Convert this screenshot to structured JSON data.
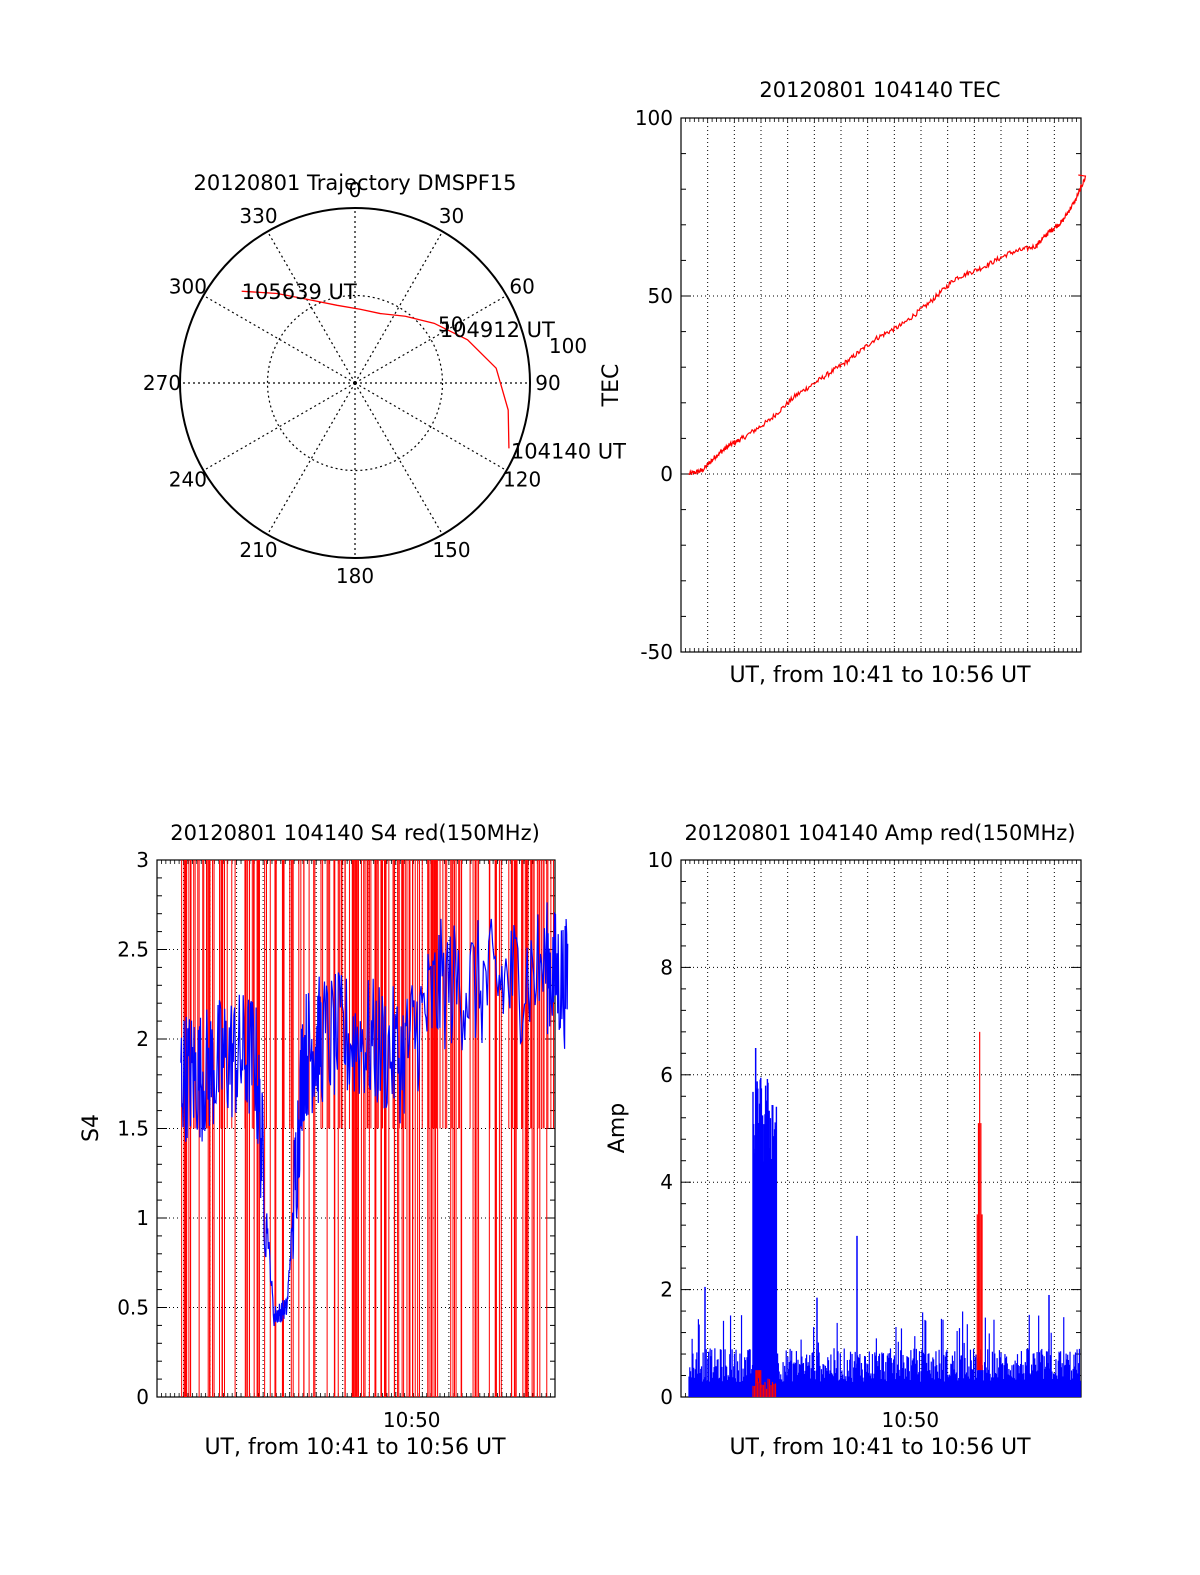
{
  "colors": {
    "background": "#ffffff",
    "axes": "#000000",
    "red_series": "#ff0000",
    "blue_series": "#0000ff"
  },
  "chart_data": [
    {
      "type": "polar",
      "title": "20120801 Trajectory DMSPF15",
      "angle_ticks": [
        "0",
        "30",
        "60",
        "90",
        "120",
        "150",
        "180",
        "210",
        "240",
        "270",
        "300",
        "330"
      ],
      "radial_ticks": [
        "50",
        "100"
      ],
      "radial_max": 100,
      "grid": true,
      "series": [
        {
          "color": "red",
          "points": [
            {
              "az": 309,
              "el": 15
            },
            {
              "az": 319,
              "el": 29
            },
            {
              "az": 331,
              "el": 41
            },
            {
              "az": 347,
              "el": 49
            },
            {
              "az": 4,
              "el": 52
            },
            {
              "az": 20,
              "el": 52
            },
            {
              "az": 37,
              "el": 47
            },
            {
              "az": 53,
              "el": 39
            },
            {
              "az": 69,
              "el": 28
            },
            {
              "az": 84,
              "el": 17
            },
            {
              "az": 100,
              "el": 10
            },
            {
              "az": 113,
              "el": 4
            }
          ]
        }
      ],
      "annotations": [
        {
          "text": "105639 UT",
          "az": 309,
          "el": 15
        },
        {
          "text": "104912 UT",
          "az": 55,
          "el": 38
        },
        {
          "text": "104140 UT",
          "az": 113,
          "el": 4
        }
      ]
    },
    {
      "type": "line",
      "title": "20120801 104140 TEC",
      "xlabel": "UT, from 10:41 to 10:56 UT",
      "ylabel": "TEC",
      "ylim": [
        -50,
        100
      ],
      "yticks": [
        "-50",
        "0",
        "50",
        "100"
      ],
      "grid": true,
      "series": [
        {
          "color": "red",
          "x_min": [
            0,
            0.5,
            1,
            1.5,
            2,
            3,
            4,
            5,
            6,
            7,
            8,
            9,
            10,
            11,
            12,
            13,
            13.5,
            14,
            14.5,
            14.9
          ],
          "values": [
            0,
            1,
            5,
            8,
            10,
            15,
            22,
            27,
            32,
            38,
            42,
            48,
            55,
            58,
            62,
            64,
            68,
            71,
            77,
            84
          ]
        }
      ]
    },
    {
      "type": "line",
      "title": "20120801 104140 S4 red(150MHz)",
      "xlabel": "UT, from 10:41 to 10:56 UT",
      "ylabel": "S4",
      "ylim": [
        0,
        3
      ],
      "yticks": [
        "0",
        "0.5",
        "1",
        "1.5",
        "2",
        "2.5",
        "3"
      ],
      "xticks": [
        "10:50"
      ],
      "grid": true,
      "series": [
        {
          "color": "red",
          "style": "dense vertical lines between 0 and 3"
        },
        {
          "color": "blue",
          "x_min": [
            0.2,
            1,
            2,
            3,
            3.7,
            4.2,
            4.8,
            5.5,
            7,
            8.5,
            10,
            12,
            14,
            14.8
          ],
          "values": [
            1.8,
            1.8,
            1.9,
            1.9,
            0.45,
            0.5,
            1.9,
            2.0,
            2.0,
            1.9,
            2.3,
            2.3,
            2.4,
            2.3
          ]
        }
      ]
    },
    {
      "type": "line",
      "title": "20120801 104140 Amp red(150MHz)",
      "xlabel": "UT, from 10:41 to 10:56 UT",
      "ylabel": "Amp",
      "ylim": [
        0,
        10
      ],
      "yticks": [
        "0",
        "2",
        "4",
        "6",
        "8",
        "10"
      ],
      "xticks": [
        "10:50"
      ],
      "grid": true,
      "series": [
        {
          "color": "blue",
          "baseline": 0.7,
          "peaks": [
            {
              "x_min": 2.8,
              "value": 6.5
            },
            {
              "x_min": 3.2,
              "value": 5.5
            },
            {
              "x_min": 6.6,
              "value": 3.0
            },
            {
              "x_min": 0.9,
              "value": 2.05
            },
            {
              "x_min": 5.1,
              "value": 1.85
            },
            {
              "x_min": 13.8,
              "value": 1.9
            }
          ]
        },
        {
          "color": "red",
          "peaks": [
            {
              "x_min": 11.2,
              "value": 6.8
            },
            {
              "x_min": 2.9,
              "value": 0.35
            }
          ]
        }
      ]
    }
  ]
}
